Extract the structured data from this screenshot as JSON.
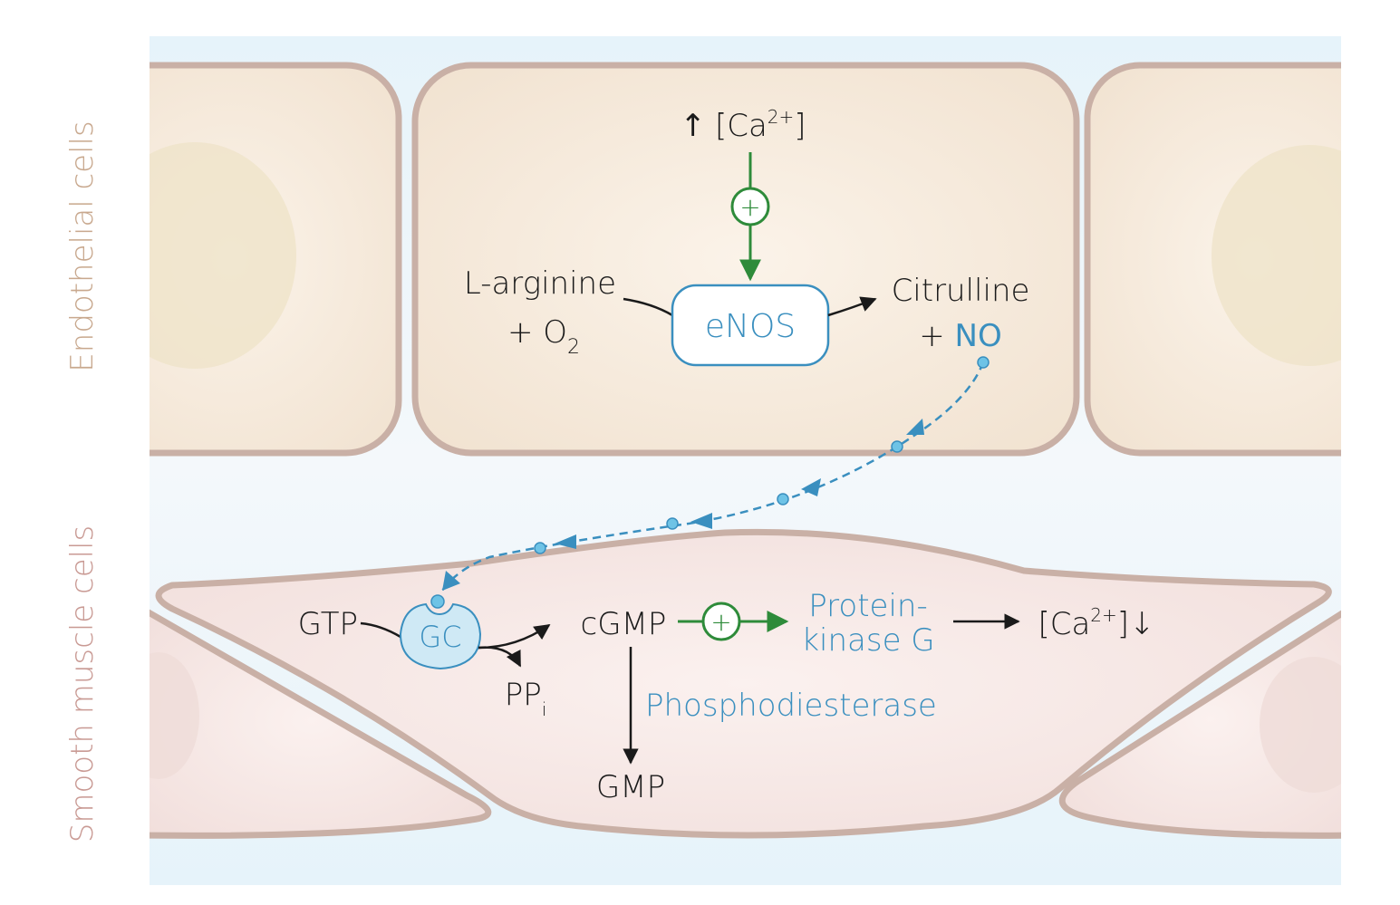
{
  "side_labels": {
    "endothelial": "Endothelial cells",
    "smooth_muscle": "Smooth muscle cells"
  },
  "endothelial": {
    "calcium_arrow": "↑",
    "calcium_open": "[Ca",
    "calcium_charge": "2+",
    "calcium_close": "]",
    "activator_symbol": "+",
    "substrate_line1": "L-arginine",
    "substrate_line2_prefix": "+ O",
    "substrate_line2_sub": "2",
    "enzyme": "eNOS",
    "product_line1": "Citrulline",
    "product_line2_prefix": "+ ",
    "product_line2_highlight": "NO"
  },
  "smooth_muscle": {
    "gtp": "GTP",
    "enzyme": "GC",
    "pp": "PP",
    "pp_sub": "i",
    "cgmp": "cGMP",
    "activator_symbol": "+",
    "pkg_line1": "Protein-",
    "pkg_line2": "kinase G",
    "calcium_open": "[Ca",
    "calcium_charge": "2+",
    "calcium_close": "]↓",
    "pde": "Phosphodiesterase",
    "gmp": "GMP"
  },
  "colors": {
    "background": "#e8f4fa",
    "endothelial_fill": "#f6eadb",
    "endothelial_stroke": "#c9b0a6",
    "smooth_muscle_fill": "#f5e5e3",
    "smooth_muscle_stroke": "#c9b0a6",
    "text": "#1a1a1a",
    "blue": "#3a8fbf",
    "green": "#2e8b3a",
    "endothelial_label": "#c8a88e",
    "smooth_muscle_label": "#c99a94"
  }
}
